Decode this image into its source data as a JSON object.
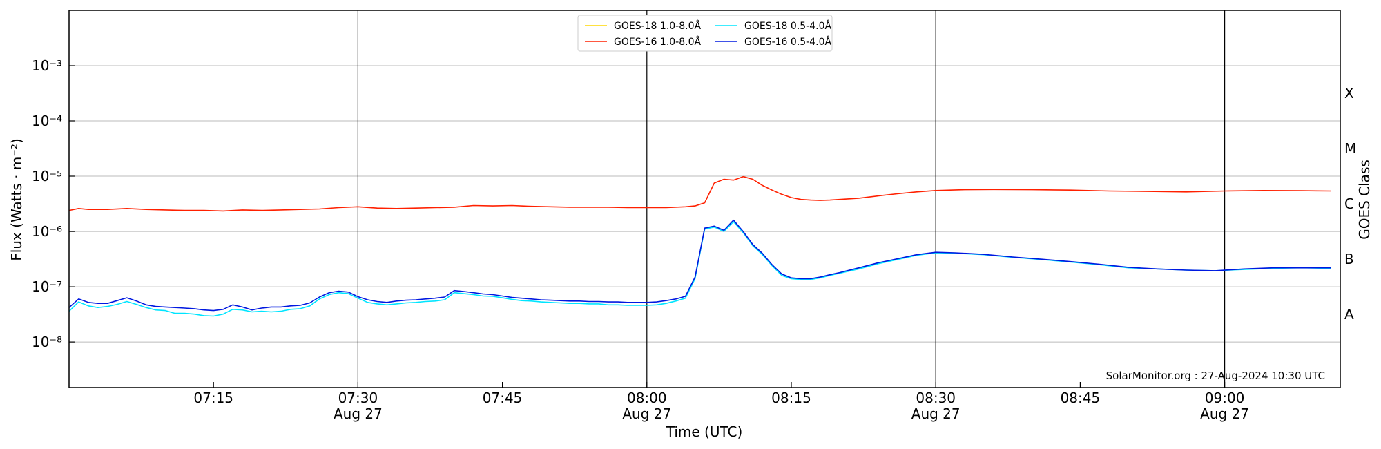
{
  "chart_data": {
    "type": "line",
    "title": "",
    "xlabel": "Time (UTC)",
    "ylabel": "Flux (Watts · m⁻²)",
    "y2label": "GOES Class",
    "yscale": "log",
    "ylim": [
      1.5e-09,
      0.01
    ],
    "xlim": [
      "07:00",
      "09:12"
    ],
    "x_ticks": [
      {
        "time": "07:15",
        "label": "07:15",
        "date": "",
        "major": false
      },
      {
        "time": "07:30",
        "label": "07:30",
        "date": "Aug 27",
        "major": true
      },
      {
        "time": "07:45",
        "label": "07:45",
        "date": "",
        "major": false
      },
      {
        "time": "08:00",
        "label": "08:00",
        "date": "Aug 27",
        "major": true
      },
      {
        "time": "08:15",
        "label": "08:15",
        "date": "",
        "major": false
      },
      {
        "time": "08:30",
        "label": "08:30",
        "date": "Aug 27",
        "major": true
      },
      {
        "time": "08:45",
        "label": "08:45",
        "date": "",
        "major": false
      },
      {
        "time": "09:00",
        "label": "09:00",
        "date": "Aug 27",
        "major": true
      }
    ],
    "y_ticks": [
      {
        "value": 1e-08,
        "label": "10⁻⁸"
      },
      {
        "value": 1e-07,
        "label": "10⁻⁷"
      },
      {
        "value": 1e-06,
        "label": "10⁻⁶"
      },
      {
        "value": 1e-05,
        "label": "10⁻⁵"
      },
      {
        "value": 0.0001,
        "label": "10⁻⁴"
      },
      {
        "value": 0.001,
        "label": "10⁻³"
      }
    ],
    "goes_classes": [
      {
        "label": "A",
        "value": 3.16e-08
      },
      {
        "label": "B",
        "value": 3.16e-07
      },
      {
        "label": "C",
        "value": 3.16e-06
      },
      {
        "label": "M",
        "value": 3.16e-05
      },
      {
        "label": "X",
        "value": 0.000316
      }
    ],
    "grid": true,
    "legend_position": "top-center",
    "credit": "SolarMonitor.org : 27-Aug-2024 10:30 UTC",
    "series": [
      {
        "name": "GOES-18 1.0-8.0Å",
        "color": "#ffd700",
        "x": [],
        "y": []
      },
      {
        "name": "GOES-16 1.0-8.0Å",
        "color": "#ff2000",
        "x": [
          "07:00",
          "07:01",
          "07:02",
          "07:04",
          "07:06",
          "07:08",
          "07:10",
          "07:12",
          "07:14",
          "07:16",
          "07:18",
          "07:20",
          "07:22",
          "07:24",
          "07:26",
          "07:28",
          "07:30",
          "07:32",
          "07:34",
          "07:36",
          "07:38",
          "07:40",
          "07:42",
          "07:44",
          "07:46",
          "07:48",
          "07:50",
          "07:52",
          "07:54",
          "07:56",
          "07:58",
          "08:00",
          "08:02",
          "08:04",
          "08:05",
          "08:06",
          "08:07",
          "08:08",
          "08:09",
          "08:10",
          "08:11",
          "08:12",
          "08:13",
          "08:14",
          "08:15",
          "08:16",
          "08:17",
          "08:18",
          "08:19",
          "08:20",
          "08:22",
          "08:24",
          "08:26",
          "08:28",
          "08:30",
          "08:33",
          "08:36",
          "08:40",
          "08:44",
          "08:48",
          "08:52",
          "08:56",
          "09:00",
          "09:04",
          "09:08",
          "09:11"
        ],
        "y": [
          2.4e-06,
          2.6e-06,
          2.5e-06,
          2.5e-06,
          2.6e-06,
          2.5e-06,
          2.45e-06,
          2.4e-06,
          2.4e-06,
          2.35e-06,
          2.45e-06,
          2.4e-06,
          2.45e-06,
          2.5e-06,
          2.55e-06,
          2.7e-06,
          2.8e-06,
          2.65e-06,
          2.6e-06,
          2.65e-06,
          2.7e-06,
          2.75e-06,
          2.95e-06,
          2.9e-06,
          2.95e-06,
          2.85e-06,
          2.8e-06,
          2.75e-06,
          2.75e-06,
          2.75e-06,
          2.7e-06,
          2.7e-06,
          2.7e-06,
          2.8e-06,
          2.9e-06,
          3.3e-06,
          7.5e-06,
          8.8e-06,
          8.5e-06,
          9.8e-06,
          8.8e-06,
          6.8e-06,
          5.6e-06,
          4.7e-06,
          4.1e-06,
          3.8e-06,
          3.7e-06,
          3.65e-06,
          3.7e-06,
          3.8e-06,
          4e-06,
          4.4e-06,
          4.8e-06,
          5.2e-06,
          5.5e-06,
          5.7e-06,
          5.75e-06,
          5.7e-06,
          5.6e-06,
          5.4e-06,
          5.3e-06,
          5.2e-06,
          5.4e-06,
          5.5e-06,
          5.45e-06,
          5.4e-06
        ]
      },
      {
        "name": "GOES-18 0.5-4.0Å",
        "color": "#00e5ff",
        "x": [
          "07:00",
          "07:01",
          "07:02",
          "07:03",
          "07:04",
          "07:05",
          "07:06",
          "07:07",
          "07:08",
          "07:09",
          "07:10",
          "07:11",
          "07:12",
          "07:13",
          "07:14",
          "07:15",
          "07:16",
          "07:17",
          "07:18",
          "07:19",
          "07:20",
          "07:21",
          "07:22",
          "07:23",
          "07:24",
          "07:25",
          "07:26",
          "07:27",
          "07:28",
          "07:29",
          "07:30",
          "07:31",
          "07:32",
          "07:33",
          "07:34",
          "07:35",
          "07:36",
          "07:37",
          "07:38",
          "07:39",
          "07:40",
          "07:41",
          "07:42",
          "07:43",
          "07:44",
          "07:45",
          "07:46",
          "07:47",
          "07:48",
          "07:49",
          "07:50",
          "07:51",
          "07:52",
          "07:53",
          "07:54",
          "07:55",
          "07:56",
          "07:57",
          "07:58",
          "07:59",
          "08:00",
          "08:01",
          "08:02",
          "08:03",
          "08:04",
          "08:05",
          "08:06",
          "08:07",
          "08:08",
          "08:09",
          "08:10",
          "08:11",
          "08:12",
          "08:13",
          "08:14",
          "08:15",
          "08:16",
          "08:17",
          "08:18",
          "08:19",
          "08:20",
          "08:22",
          "08:24",
          "08:26",
          "08:28",
          "08:30",
          "08:32",
          "08:35",
          "08:38",
          "08:41",
          "08:44",
          "08:47",
          "08:50",
          "08:53",
          "08:56",
          "08:59",
          "09:02",
          "09:05",
          "09:08",
          "09:11"
        ],
        "y": [
          3.6e-08,
          5.3e-08,
          4.5e-08,
          4.2e-08,
          4.4e-08,
          4.8e-08,
          5.4e-08,
          4.8e-08,
          4.2e-08,
          3.8e-08,
          3.7e-08,
          3.3e-08,
          3.3e-08,
          3.2e-08,
          3e-08,
          2.95e-08,
          3.2e-08,
          3.9e-08,
          3.8e-08,
          3.5e-08,
          3.6e-08,
          3.5e-08,
          3.6e-08,
          3.9e-08,
          4e-08,
          4.5e-08,
          6e-08,
          7.2e-08,
          7.8e-08,
          7.5e-08,
          6.2e-08,
          5.2e-08,
          4.9e-08,
          4.7e-08,
          4.9e-08,
          5.1e-08,
          5.2e-08,
          5.4e-08,
          5.5e-08,
          5.8e-08,
          7.8e-08,
          7.5e-08,
          7.2e-08,
          6.8e-08,
          6.7e-08,
          6.3e-08,
          5.9e-08,
          5.6e-08,
          5.5e-08,
          5.3e-08,
          5.2e-08,
          5.1e-08,
          5e-08,
          5e-08,
          4.9e-08,
          4.9e-08,
          4.7e-08,
          4.7e-08,
          4.6e-08,
          4.6e-08,
          4.6e-08,
          4.7e-08,
          5e-08,
          5.5e-08,
          6.2e-08,
          1.4e-07,
          1.1e-06,
          1.2e-06,
          1e-06,
          1.5e-06,
          9.5e-07,
          5.5e-07,
          3.8e-07,
          2.4e-07,
          1.6e-07,
          1.4e-07,
          1.35e-07,
          1.35e-07,
          1.45e-07,
          1.6e-07,
          1.75e-07,
          2.1e-07,
          2.6e-07,
          3.1e-07,
          3.7e-07,
          4.1e-07,
          4.05e-07,
          3.8e-07,
          3.4e-07,
          3.1e-07,
          2.8e-07,
          2.5e-07,
          2.2e-07,
          2.1e-07,
          2e-07,
          1.95e-07,
          2.05e-07,
          2.15e-07,
          2.2e-07,
          2.15e-07
        ]
      },
      {
        "name": "GOES-16 0.5-4.0Å",
        "color": "#0018e0",
        "x": [
          "07:00",
          "07:01",
          "07:02",
          "07:03",
          "07:04",
          "07:05",
          "07:06",
          "07:07",
          "07:08",
          "07:09",
          "07:10",
          "07:11",
          "07:12",
          "07:13",
          "07:14",
          "07:15",
          "07:16",
          "07:17",
          "07:18",
          "07:19",
          "07:20",
          "07:21",
          "07:22",
          "07:23",
          "07:24",
          "07:25",
          "07:26",
          "07:27",
          "07:28",
          "07:29",
          "07:30",
          "07:31",
          "07:32",
          "07:33",
          "07:34",
          "07:35",
          "07:36",
          "07:37",
          "07:38",
          "07:39",
          "07:40",
          "07:41",
          "07:42",
          "07:43",
          "07:44",
          "07:45",
          "07:46",
          "07:47",
          "07:48",
          "07:49",
          "07:50",
          "07:51",
          "07:52",
          "07:53",
          "07:54",
          "07:55",
          "07:56",
          "07:57",
          "07:58",
          "07:59",
          "08:00",
          "08:01",
          "08:02",
          "08:03",
          "08:04",
          "08:05",
          "08:06",
          "08:07",
          "08:08",
          "08:09",
          "08:10",
          "08:11",
          "08:12",
          "08:13",
          "08:14",
          "08:15",
          "08:16",
          "08:17",
          "08:18",
          "08:19",
          "08:20",
          "08:22",
          "08:24",
          "08:26",
          "08:28",
          "08:30",
          "08:32",
          "08:35",
          "08:38",
          "08:41",
          "08:44",
          "08:47",
          "08:50",
          "08:53",
          "08:56",
          "08:59",
          "09:02",
          "09:05",
          "09:08",
          "09:11"
        ],
        "y": [
          4.2e-08,
          6e-08,
          5.2e-08,
          5e-08,
          5e-08,
          5.6e-08,
          6.3e-08,
          5.5e-08,
          4.7e-08,
          4.4e-08,
          4.3e-08,
          4.2e-08,
          4.1e-08,
          4e-08,
          3.8e-08,
          3.7e-08,
          3.9e-08,
          4.7e-08,
          4.3e-08,
          3.8e-08,
          4.1e-08,
          4.3e-08,
          4.3e-08,
          4.5e-08,
          4.6e-08,
          5.1e-08,
          6.5e-08,
          7.8e-08,
          8.3e-08,
          8e-08,
          6.6e-08,
          5.8e-08,
          5.4e-08,
          5.2e-08,
          5.5e-08,
          5.7e-08,
          5.8e-08,
          6e-08,
          6.2e-08,
          6.5e-08,
          8.5e-08,
          8.2e-08,
          7.8e-08,
          7.4e-08,
          7.2e-08,
          6.8e-08,
          6.4e-08,
          6.2e-08,
          6e-08,
          5.8e-08,
          5.7e-08,
          5.6e-08,
          5.5e-08,
          5.5e-08,
          5.4e-08,
          5.4e-08,
          5.3e-08,
          5.3e-08,
          5.2e-08,
          5.2e-08,
          5.2e-08,
          5.3e-08,
          5.6e-08,
          6e-08,
          6.7e-08,
          1.5e-07,
          1.15e-06,
          1.25e-06,
          1.05e-06,
          1.6e-06,
          1e-06,
          5.8e-07,
          4e-07,
          2.5e-07,
          1.7e-07,
          1.45e-07,
          1.4e-07,
          1.4e-07,
          1.5e-07,
          1.65e-07,
          1.8e-07,
          2.2e-07,
          2.7e-07,
          3.2e-07,
          3.8e-07,
          4.2e-07,
          4.1e-07,
          3.85e-07,
          3.45e-07,
          3.15e-07,
          2.85e-07,
          2.55e-07,
          2.25e-07,
          2.1e-07,
          2e-07,
          1.95e-07,
          2.1e-07,
          2.2e-07,
          2.2e-07,
          2.2e-07
        ]
      }
    ]
  }
}
